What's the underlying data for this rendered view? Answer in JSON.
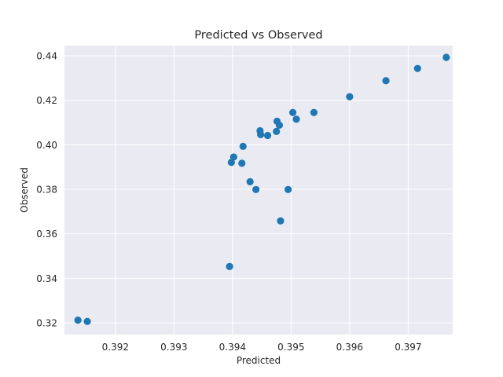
{
  "chart_data": {
    "type": "scatter",
    "title": "Predicted vs Observed",
    "xlabel": "Predicted",
    "ylabel": "Observed",
    "xlim": [
      0.39113,
      0.39776
    ],
    "ylim": [
      0.3147,
      0.4446
    ],
    "x_ticks": [
      0.392,
      0.393,
      0.394,
      0.395,
      0.396,
      0.397
    ],
    "x_tick_labels": [
      "0.392",
      "0.393",
      "0.394",
      "0.395",
      "0.396",
      "0.397"
    ],
    "y_ticks": [
      0.32,
      0.34,
      0.36,
      0.38,
      0.4,
      0.42,
      0.44
    ],
    "y_tick_labels": [
      "0.32",
      "0.34",
      "0.36",
      "0.38",
      "0.40",
      "0.42",
      "0.44"
    ],
    "grid": true,
    "background_color": "#eaeaf2",
    "marker_color": "#1f77b4",
    "points": [
      {
        "x": 0.39136,
        "y": 0.3212
      },
      {
        "x": 0.39152,
        "y": 0.3206
      },
      {
        "x": 0.39395,
        "y": 0.3453
      },
      {
        "x": 0.39398,
        "y": 0.3921
      },
      {
        "x": 0.39402,
        "y": 0.3945
      },
      {
        "x": 0.39416,
        "y": 0.3917
      },
      {
        "x": 0.39418,
        "y": 0.3993
      },
      {
        "x": 0.3943,
        "y": 0.3834
      },
      {
        "x": 0.3944,
        "y": 0.3799
      },
      {
        "x": 0.39447,
        "y": 0.4063
      },
      {
        "x": 0.39448,
        "y": 0.4046
      },
      {
        "x": 0.3946,
        "y": 0.4042
      },
      {
        "x": 0.39475,
        "y": 0.406
      },
      {
        "x": 0.39476,
        "y": 0.4106
      },
      {
        "x": 0.3948,
        "y": 0.4088
      },
      {
        "x": 0.39482,
        "y": 0.3658
      },
      {
        "x": 0.39495,
        "y": 0.3799
      },
      {
        "x": 0.39503,
        "y": 0.4145
      },
      {
        "x": 0.39509,
        "y": 0.4115
      },
      {
        "x": 0.39539,
        "y": 0.4145
      },
      {
        "x": 0.396,
        "y": 0.4216
      },
      {
        "x": 0.39662,
        "y": 0.4288
      },
      {
        "x": 0.39716,
        "y": 0.4343
      },
      {
        "x": 0.39765,
        "y": 0.4393
      }
    ]
  }
}
